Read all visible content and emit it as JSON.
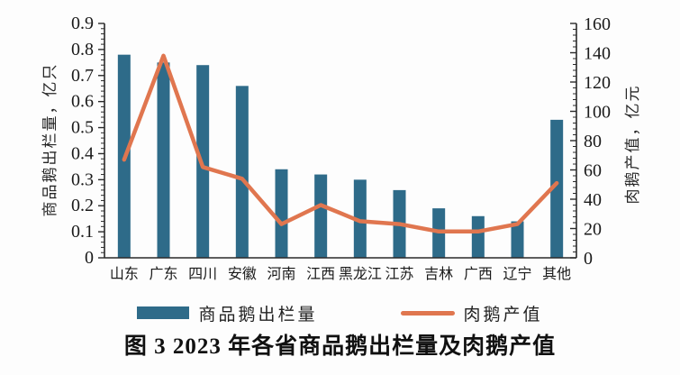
{
  "title": "图 3  2023 年各省商品鹅出栏量及肉鹅产值",
  "legend": {
    "bar_label": "商品鹅出栏量",
    "line_label": "肉鹅产值"
  },
  "colors": {
    "bar": "#2e6b89",
    "line": "#e0764f",
    "axis": "#2a2a2a",
    "text": "#1a1a1a"
  },
  "chart_data": {
    "type": "bar+line",
    "categories": [
      "山东",
      "广东",
      "四川",
      "安徽",
      "河南",
      "江西",
      "黑龙江",
      "江苏",
      "吉林",
      "广西",
      "辽宁",
      "其他"
    ],
    "series": [
      {
        "name": "商品鹅出栏量",
        "type": "bar",
        "axis": "left",
        "unit": "亿只",
        "values": [
          0.78,
          0.75,
          0.74,
          0.66,
          0.34,
          0.32,
          0.3,
          0.26,
          0.19,
          0.16,
          0.14,
          0.53
        ]
      },
      {
        "name": "肉鹅产值",
        "type": "line",
        "axis": "right",
        "unit": "亿元",
        "values": [
          67,
          138,
          62,
          54,
          23,
          36,
          25,
          23,
          18,
          18,
          23,
          51
        ]
      }
    ],
    "left_axis": {
      "title": "商品鹅出栏量，亿只",
      "min": 0,
      "max": 0.9,
      "tick_step": 0.1,
      "minor_step": 0.02
    },
    "right_axis": {
      "title": "肉鹅产值，亿元",
      "min": 0,
      "max": 160,
      "tick_step": 20,
      "minor_step": 4
    },
    "grid": false,
    "legend_position": "bottom"
  }
}
